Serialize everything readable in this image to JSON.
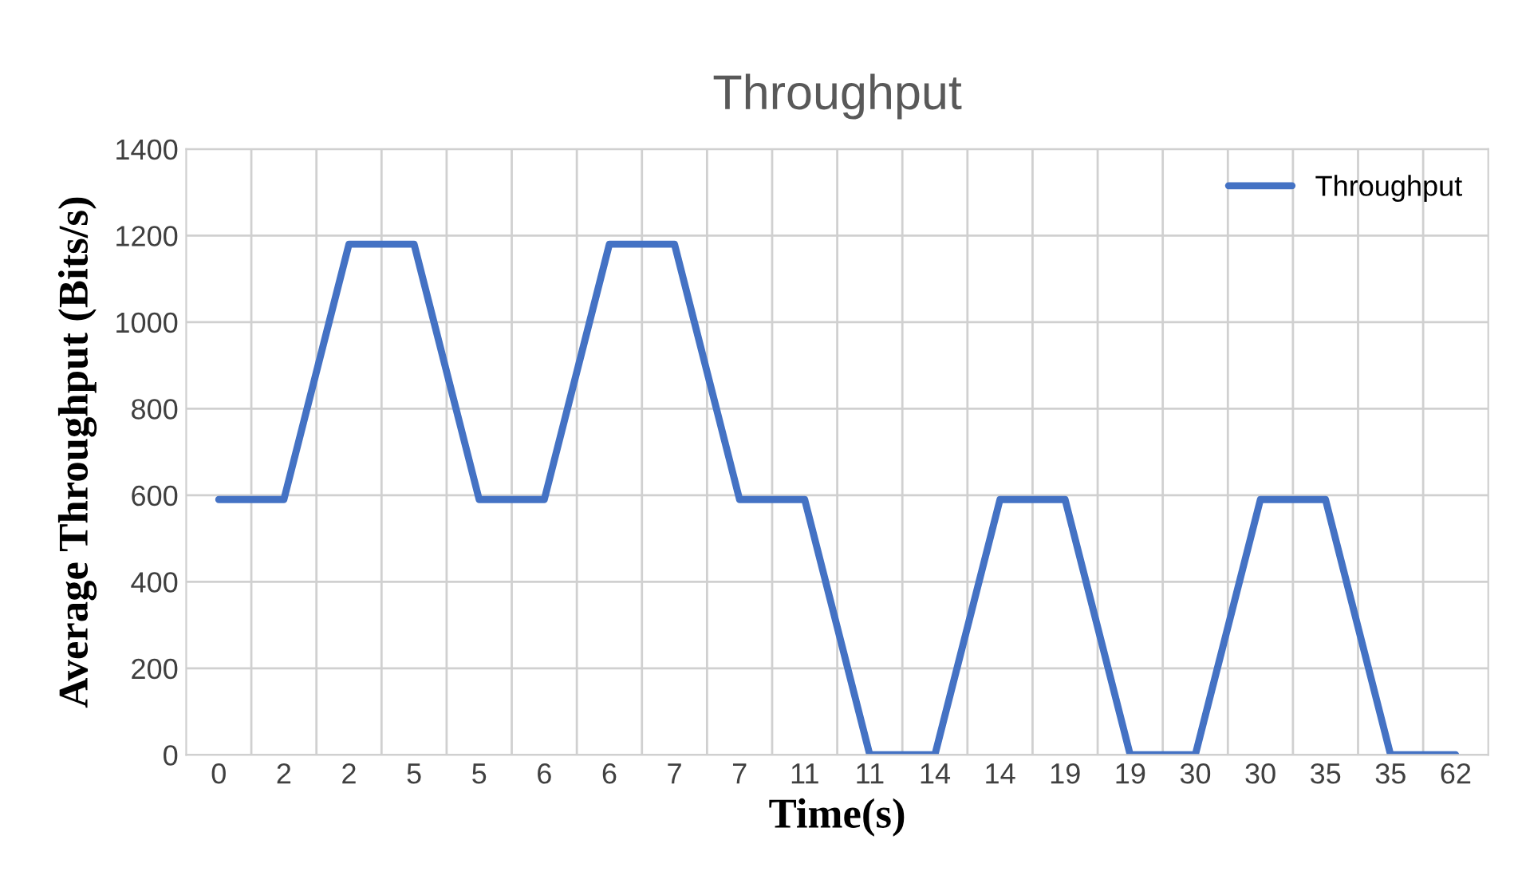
{
  "chart_data": {
    "type": "line",
    "title": "Throughput",
    "xlabel": "Time(s)",
    "ylabel": "Average Throughput (Bits/s)",
    "categories": [
      "0",
      "2",
      "2",
      "5",
      "5",
      "6",
      "6",
      "7",
      "7",
      "11",
      "11",
      "14",
      "14",
      "19",
      "19",
      "30",
      "30",
      "35",
      "35",
      "62"
    ],
    "series": [
      {
        "name": "Throughput",
        "color": "#4472c4",
        "values": [
          590,
          590,
          1180,
          1180,
          590,
          590,
          1180,
          1180,
          590,
          590,
          0,
          0,
          590,
          590,
          0,
          0,
          590,
          590,
          0,
          0
        ]
      }
    ],
    "ylim": [
      0,
      1400
    ],
    "yticks": [
      0,
      200,
      400,
      600,
      800,
      1000,
      1200,
      1400
    ],
    "grid": true,
    "legend": "top right",
    "marker": "none",
    "line_style": "solid"
  }
}
